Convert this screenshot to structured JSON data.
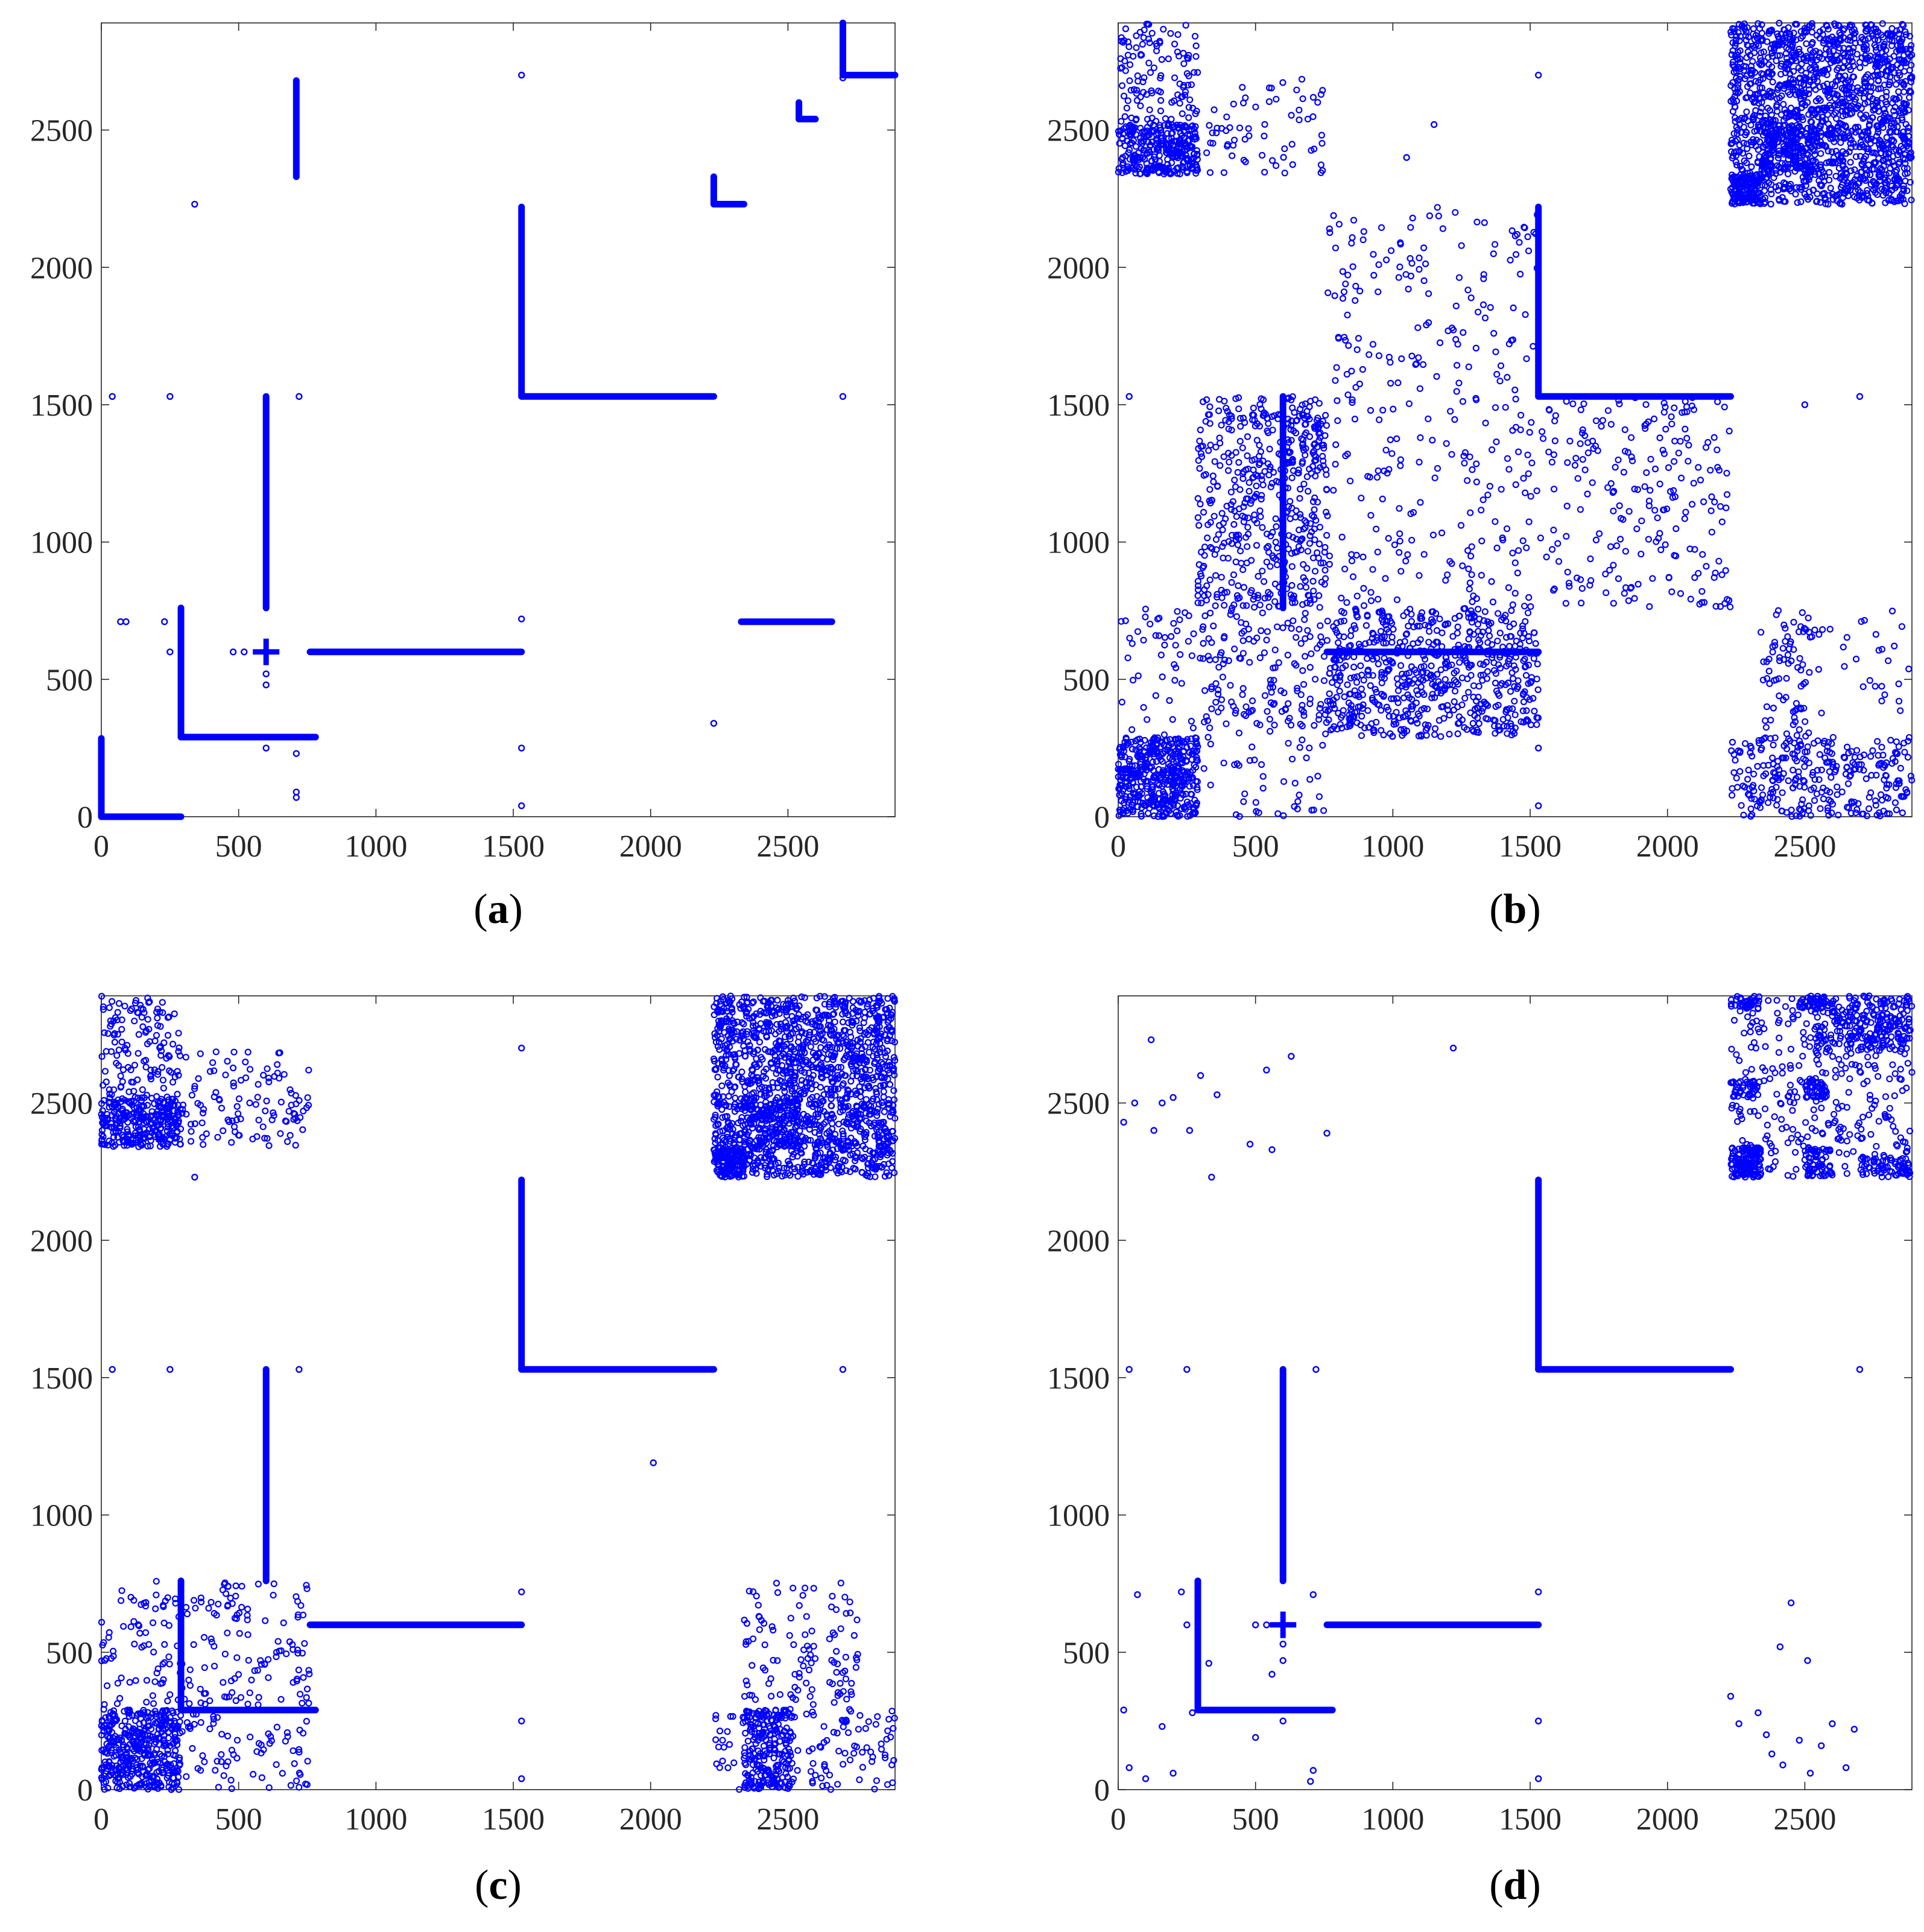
{
  "figure": {
    "background": "#ffffff",
    "marker_color": "#0000ff",
    "axis_color": "#262626"
  },
  "chart_data": [
    {
      "panel": "a",
      "caption_letter": "a",
      "type": "scatter",
      "title": "",
      "xlabel": "",
      "ylabel": "",
      "xlim": [
        0,
        2890
      ],
      "ylim": [
        0,
        2890
      ],
      "xticks": [
        0,
        500,
        1000,
        1500,
        2000,
        2500
      ],
      "yticks": [
        0,
        500,
        1000,
        1500,
        2000,
        2500
      ],
      "xtick_labels": [
        "0",
        "500",
        "1000",
        "1500",
        "2000",
        "2500"
      ],
      "ytick_labels": [
        "0",
        "500",
        "1000",
        "1500",
        "2000",
        "2500"
      ],
      "grid": false,
      "legend": false,
      "segments": [
        [
          0,
          0,
          0,
          285
        ],
        [
          0,
          0,
          290,
          0
        ],
        [
          290,
          290,
          290,
          760
        ],
        [
          290,
          290,
          780,
          290
        ],
        [
          600,
          760,
          600,
          1530
        ],
        [
          760,
          600,
          1530,
          600
        ],
        [
          1530,
          1530,
          1530,
          2220
        ],
        [
          1530,
          1530,
          2230,
          1530
        ],
        [
          710,
          2330,
          710,
          2680
        ],
        [
          2230,
          2230,
          2230,
          2330
        ],
        [
          2230,
          2230,
          2340,
          2230
        ],
        [
          2540,
          2540,
          2540,
          2600
        ],
        [
          2540,
          2540,
          2600,
          2540
        ],
        [
          2700,
          2700,
          2700,
          2890
        ],
        [
          2700,
          2700,
          2890,
          2700
        ],
        [
          2330,
          710,
          2660,
          710
        ]
      ],
      "cross_points": [
        [
          600,
          600
        ]
      ],
      "points": [
        [
          40,
          1530
        ],
        [
          250,
          1530
        ],
        [
          720,
          1530
        ],
        [
          2700,
          1530
        ],
        [
          1530,
          2700
        ],
        [
          340,
          2230
        ],
        [
          2230,
          340
        ],
        [
          1530,
          250
        ],
        [
          1530,
          40
        ],
        [
          1530,
          720
        ],
        [
          250,
          600
        ],
        [
          600,
          250
        ],
        [
          70,
          710
        ],
        [
          710,
          70
        ],
        [
          90,
          710
        ],
        [
          710,
          90
        ],
        [
          480,
          600
        ],
        [
          520,
          600
        ],
        [
          600,
          480
        ],
        [
          600,
          520
        ],
        [
          2700,
          2690
        ],
        [
          230,
          710
        ],
        [
          710,
          230
        ]
      ],
      "random_blocks": []
    },
    {
      "panel": "b",
      "caption_letter": "b",
      "type": "scatter",
      "title": "",
      "xlabel": "",
      "ylabel": "",
      "xlim": [
        0,
        2890
      ],
      "ylim": [
        0,
        2890
      ],
      "xticks": [
        0,
        500,
        1000,
        1500,
        2000,
        2500
      ],
      "yticks": [
        0,
        500,
        1000,
        1500,
        2000,
        2500
      ],
      "xtick_labels": [
        "0",
        "500",
        "1000",
        "1500",
        "2000",
        "2500"
      ],
      "ytick_labels": [
        "0",
        "500",
        "1000",
        "1500",
        "2000",
        "2500"
      ],
      "grid": false,
      "legend": false,
      "segments": [
        [
          1530,
          1530,
          1530,
          2220
        ],
        [
          1530,
          1530,
          2230,
          1530
        ],
        [
          600,
          760,
          600,
          1530
        ],
        [
          760,
          600,
          1530,
          600
        ]
      ],
      "cross_points": [],
      "points": [
        [
          40,
          1530
        ],
        [
          2700,
          1530
        ],
        [
          1530,
          2700
        ],
        [
          1530,
          40
        ],
        [
          1530,
          250
        ],
        [
          1150,
          2520
        ],
        [
          1050,
          2400
        ],
        [
          2500,
          1500
        ]
      ],
      "random_blocks": [
        [
          0,
          290,
          0,
          290,
          420
        ],
        [
          0,
          290,
          2340,
          2520,
          300
        ],
        [
          0,
          290,
          2520,
          2890,
          120
        ],
        [
          290,
          760,
          2340,
          2520,
          40
        ],
        [
          290,
          760,
          2520,
          2690,
          25
        ],
        [
          290,
          760,
          760,
          1530,
          450
        ],
        [
          600,
          760,
          1230,
          1530,
          60
        ],
        [
          760,
          1530,
          290,
          760,
          650
        ],
        [
          300,
          760,
          290,
          760,
          80
        ],
        [
          760,
          1530,
          760,
          2220,
          300
        ],
        [
          1530,
          2230,
          760,
          1530,
          220
        ],
        [
          2230,
          2890,
          0,
          290,
          260
        ],
        [
          2340,
          2520,
          0,
          760,
          110
        ],
        [
          2520,
          2890,
          290,
          760,
          30
        ],
        [
          2230,
          2890,
          2230,
          2890,
          1500
        ],
        [
          2230,
          2340,
          2230,
          2340,
          120
        ],
        [
          2340,
          2540,
          2340,
          2520,
          140
        ],
        [
          0,
          760,
          0,
          760,
          200
        ]
      ]
    },
    {
      "panel": "c",
      "caption_letter": "c",
      "type": "scatter",
      "title": "",
      "xlabel": "",
      "ylabel": "",
      "xlim": [
        0,
        2890
      ],
      "ylim": [
        0,
        2890
      ],
      "xticks": [
        0,
        500,
        1000,
        1500,
        2000,
        2500
      ],
      "yticks": [
        0,
        500,
        1000,
        1500,
        2000,
        2500
      ],
      "xtick_labels": [
        "0",
        "500",
        "1000",
        "1500",
        "2000",
        "2500"
      ],
      "ytick_labels": [
        "0",
        "500",
        "1000",
        "1500",
        "2000",
        "2500"
      ],
      "grid": false,
      "legend": false,
      "segments": [
        [
          290,
          290,
          290,
          760
        ],
        [
          290,
          290,
          780,
          290
        ],
        [
          600,
          760,
          600,
          1530
        ],
        [
          760,
          600,
          1530,
          600
        ],
        [
          1530,
          1530,
          1530,
          2220
        ],
        [
          1530,
          1530,
          2230,
          1530
        ]
      ],
      "cross_points": [],
      "points": [
        [
          40,
          1530
        ],
        [
          250,
          1530
        ],
        [
          720,
          1530
        ],
        [
          2700,
          1530
        ],
        [
          1530,
          2700
        ],
        [
          2010,
          1190
        ],
        [
          1530,
          250
        ],
        [
          1530,
          40
        ],
        [
          1530,
          720
        ],
        [
          340,
          2230
        ]
      ],
      "random_blocks": [
        [
          0,
          290,
          0,
          290,
          380
        ],
        [
          0,
          760,
          0,
          760,
          300
        ],
        [
          0,
          290,
          2340,
          2520,
          300
        ],
        [
          0,
          290,
          2520,
          2890,
          130
        ],
        [
          290,
          760,
          2340,
          2520,
          70
        ],
        [
          290,
          760,
          2520,
          2690,
          40
        ],
        [
          2340,
          2520,
          0,
          290,
          220
        ],
        [
          2230,
          2890,
          0,
          290,
          120
        ],
        [
          2340,
          2600,
          290,
          760,
          70
        ],
        [
          2650,
          2760,
          290,
          760,
          40
        ],
        [
          2230,
          2890,
          2230,
          2890,
          1500
        ],
        [
          2230,
          2340,
          2230,
          2340,
          120
        ],
        [
          2340,
          2540,
          2340,
          2520,
          140
        ]
      ]
    },
    {
      "panel": "d",
      "caption_letter": "d",
      "type": "scatter",
      "title": "",
      "xlabel": "",
      "ylabel": "",
      "xlim": [
        0,
        2890
      ],
      "ylim": [
        0,
        2890
      ],
      "xticks": [
        0,
        500,
        1000,
        1500,
        2000,
        2500
      ],
      "yticks": [
        0,
        500,
        1000,
        1500,
        2000,
        2500
      ],
      "xtick_labels": [
        "0",
        "500",
        "1000",
        "1500",
        "2000",
        "2500"
      ],
      "ytick_labels": [
        "0",
        "500",
        "1000",
        "1500",
        "2000",
        "2500"
      ],
      "grid": false,
      "legend": false,
      "segments": [
        [
          290,
          290,
          290,
          760
        ],
        [
          290,
          290,
          780,
          290
        ],
        [
          600,
          760,
          600,
          1530
        ],
        [
          760,
          600,
          1530,
          600
        ],
        [
          1530,
          1530,
          1530,
          2220
        ],
        [
          1530,
          1530,
          2230,
          1530
        ]
      ],
      "cross_points": [
        [
          600,
          600
        ]
      ],
      "points": [
        [
          40,
          1530
        ],
        [
          250,
          1530
        ],
        [
          720,
          1530
        ],
        [
          2700,
          1530
        ],
        [
          1220,
          2700
        ],
        [
          1530,
          250
        ],
        [
          1530,
          40
        ],
        [
          1530,
          720
        ],
        [
          600,
          470
        ],
        [
          600,
          530
        ],
        [
          500,
          600
        ],
        [
          540,
          600
        ],
        [
          250,
          600
        ],
        [
          600,
          250
        ],
        [
          480,
          2350
        ],
        [
          560,
          2330
        ],
        [
          340,
          2230
        ],
        [
          120,
          2730
        ],
        [
          630,
          2670
        ],
        [
          540,
          2620
        ],
        [
          760,
          2390
        ],
        [
          20,
          2430
        ],
        [
          60,
          2500
        ],
        [
          130,
          2400
        ],
        [
          160,
          2500
        ],
        [
          200,
          2520
        ],
        [
          260,
          2400
        ],
        [
          300,
          2600
        ],
        [
          360,
          2530
        ],
        [
          70,
          710
        ],
        [
          710,
          70
        ],
        [
          710,
          710
        ],
        [
          20,
          290
        ],
        [
          40,
          80
        ],
        [
          100,
          40
        ],
        [
          160,
          230
        ],
        [
          200,
          60
        ],
        [
          230,
          720
        ],
        [
          270,
          280
        ],
        [
          330,
          460
        ],
        [
          500,
          190
        ],
        [
          560,
          420
        ],
        [
          700,
          30
        ],
        [
          2230,
          340
        ],
        [
          2260,
          240
        ],
        [
          2360,
          200
        ],
        [
          2410,
          520
        ],
        [
          2450,
          680
        ],
        [
          2480,
          180
        ],
        [
          2510,
          470
        ],
        [
          2600,
          240
        ],
        [
          2680,
          220
        ],
        [
          2380,
          130
        ],
        [
          2420,
          90
        ],
        [
          2520,
          60
        ],
        [
          2560,
          160
        ],
        [
          2650,
          80
        ],
        [
          2330,
          280
        ]
      ],
      "random_blocks": [
        [
          2230,
          2340,
          2230,
          2340,
          140
        ],
        [
          2230,
          2890,
          2230,
          2890,
          320
        ],
        [
          2520,
          2890,
          2690,
          2890,
          220
        ],
        [
          2230,
          2340,
          2520,
          2580,
          40
        ],
        [
          2500,
          2580,
          2520,
          2580,
          40
        ],
        [
          2500,
          2600,
          2230,
          2340,
          60
        ],
        [
          2700,
          2890,
          2230,
          2300,
          60
        ],
        [
          2230,
          2340,
          2840,
          2890,
          40
        ],
        [
          2480,
          2580,
          2840,
          2890,
          40
        ]
      ]
    }
  ]
}
